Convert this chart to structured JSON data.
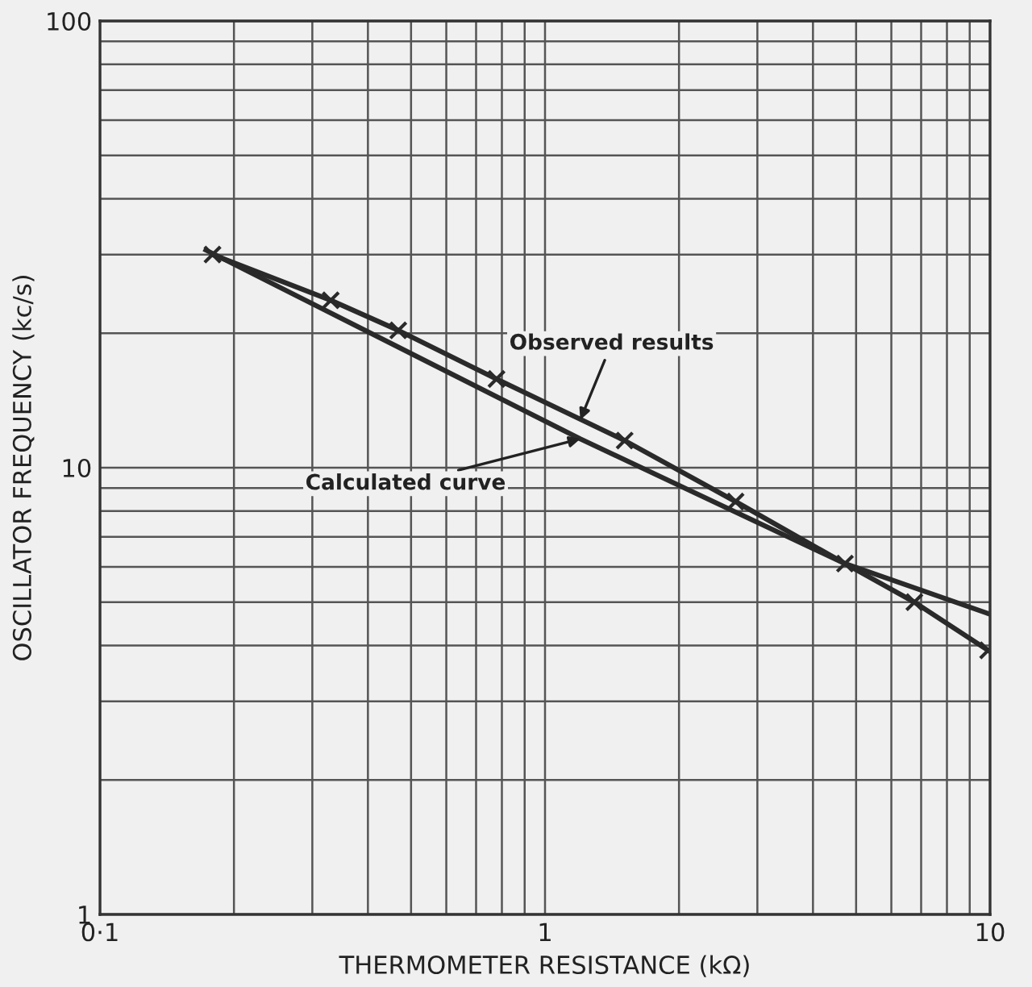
{
  "chart_data": {
    "type": "line",
    "xlabel": "THERMOMETER RESISTANCE (kΩ)",
    "ylabel": "OSCILLATOR FREQUENCY (kc/s)",
    "log": "xy",
    "xlim": [
      0.1,
      10
    ],
    "ylim": [
      1,
      100
    ],
    "xticks": [
      {
        "value": 0.1,
        "label": "0·1"
      },
      1,
      10
    ],
    "yticks": [
      1,
      10,
      100
    ],
    "grid": true,
    "series": [
      {
        "color": "#2a2a2a",
        "marker": "cross",
        "x": [
          0.179,
          0.33,
          0.468,
          0.778,
          1.51,
          2.68,
          4.72,
          6.76,
          9.9
        ],
        "values": [
          30,
          23.7,
          20.3,
          15.8,
          11.5,
          8.4,
          6.1,
          5.0,
          3.9
        ]
      },
      {
        "color": "#2a2a2a",
        "marker": "none",
        "x": [
          0.173,
          1.2,
          4.72,
          10
        ],
        "values": [
          30.7,
          11.6,
          6.1,
          4.7
        ]
      }
    ],
    "annotations": [
      {
        "text": "Observed results",
        "x": 1.2,
        "y": 12.8
      },
      {
        "text": "Calculated curve",
        "x": 1.2,
        "y": 11.6
      }
    ]
  }
}
